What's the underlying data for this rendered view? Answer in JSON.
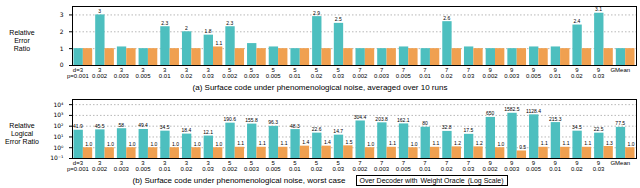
{
  "chart_data": [
    {
      "type": "bar",
      "title": "(a) Surface code under phenomenological noise, averaged over 10 runs",
      "ylabel": "Relative\nError\nRatio",
      "categories": [
        "d=3\np=0.001",
        "3\n0.002",
        "3\n0.003",
        "3\n0.005",
        "3\n0.01",
        "3\n0.02",
        "3\n0.03",
        "5\n0.002",
        "5\n0.003",
        "5\n0.005",
        "5\n0.01",
        "5\n0.02",
        "5\n0.03",
        "7\n0.002",
        "7\n0.003",
        "7\n0.005",
        "7\n0.01",
        "7\n0.02",
        "7\n0.03",
        "9\n0.002",
        "9\n0.003",
        "9\n0.005",
        "9\n0.01",
        "9\n0.02",
        "9\n0.03",
        "GMean"
      ],
      "series": [
        {
          "color": "#4dbfbf",
          "values": [
            1.0,
            3.0,
            1.1,
            1.0,
            2.3,
            2.0,
            1.8,
            2.3,
            1.3,
            1.1,
            1.0,
            2.9,
            2.5,
            1.0,
            1.0,
            1.1,
            1.0,
            2.6,
            1.1,
            1.0,
            1.0,
            1.1,
            1.1,
            2.4,
            3.1,
            1.0
          ],
          "value_labels": [
            null,
            "3",
            null,
            null,
            "2.3",
            "2",
            "1.8",
            "2.3",
            null,
            null,
            null,
            "2.9",
            "2.5",
            null,
            null,
            null,
            null,
            "2.6",
            null,
            null,
            null,
            null,
            null,
            "2.4",
            "3.1",
            null
          ]
        },
        {
          "color": "#f0a050",
          "values": [
            1.0,
            1.0,
            1.0,
            1.0,
            1.0,
            1.0,
            1.1,
            1.0,
            1.0,
            1.0,
            1.0,
            1.0,
            1.0,
            1.0,
            1.0,
            1.0,
            1.0,
            1.0,
            1.0,
            1.0,
            1.0,
            1.0,
            1.0,
            1.0,
            1.0,
            1.0
          ],
          "value_labels": [
            null,
            null,
            null,
            null,
            null,
            null,
            "1.1",
            null,
            null,
            null,
            null,
            null,
            null,
            null,
            null,
            null,
            null,
            null,
            null,
            null,
            null,
            null,
            null,
            null,
            null,
            null
          ]
        }
      ],
      "ylim": [
        0,
        3.5
      ],
      "yticks": [
        0,
        1,
        2,
        3
      ],
      "grid": true,
      "data_labels": true
    },
    {
      "type": "bar",
      "title": "(b) Surface code under phenomenological noise, worst case",
      "ylabel": "Relative Logical\nError Ratio",
      "annotations": [
        "Over Decoder with",
        "Weight Oracle",
        "(Log Scale)"
      ],
      "categories": [
        "d=3\np=0.001",
        "3\n0.002",
        "3\n0.003",
        "3\n0.005",
        "3\n0.01",
        "3\n0.02",
        "3\n0.03",
        "5\n0.002",
        "5\n0.003",
        "5\n0.005",
        "5\n0.01",
        "5\n0.02",
        "5\n0.03",
        "7\n0.002",
        "7\n0.003",
        "7\n0.005",
        "7\n0.01",
        "7\n0.02",
        "7\n0.03",
        "9\n0.002",
        "9\n0.003",
        "9\n0.005",
        "9\n0.01",
        "9\n0.02",
        "9\n0.03",
        "GMean"
      ],
      "series": [
        {
          "color": "#4dbfbf",
          "values": [
            41.9,
            45.5,
            58.0,
            49.4,
            34.5,
            18.4,
            12.1,
            190.6,
            155.8,
            96.3,
            48.3,
            22.6,
            14.7,
            304.4,
            203.8,
            162.1,
            80.0,
            32.8,
            17.5,
            650.0,
            1582.5,
            1128.4,
            215.3,
            34.5,
            22.5,
            77.5
          ],
          "value_labels": [
            "41.9",
            "45.5",
            "58",
            "49.4",
            "34.5",
            "18.4",
            "12.1",
            "190.6",
            "155.8",
            "96.3",
            "48.3",
            "22.6",
            "14.7",
            "304.4",
            "203.8",
            "162.1",
            "80",
            "32.8",
            "17.5",
            "650",
            "1582.5",
            "1128.4",
            "215.3",
            "34.5",
            "22.5",
            "77.5"
          ]
        },
        {
          "color": "#f0a050",
          "values": [
            1.0,
            1.0,
            1.0,
            1.0,
            1.0,
            1.0,
            1.0,
            1.1,
            1.1,
            1.1,
            1.4,
            1.4,
            1.5,
            1.0,
            1.1,
            1.0,
            1.1,
            1.2,
            1.2,
            1.0,
            0.5,
            1.1,
            1.1,
            1.1,
            1.3,
            1.0
          ],
          "value_labels": [
            "1.0",
            "1.0",
            "1.0",
            "1.0",
            "1.0",
            "1.0",
            "1.0",
            "1.1",
            "1.1",
            "1.1",
            "1.4",
            "1.4",
            "1.5",
            "1.0",
            "1.1",
            "1.0",
            "1.1",
            "1.2",
            "1.2",
            "1.0",
            "0.5",
            "1.1",
            "1.1",
            "1.1",
            "1.3",
            "1.0"
          ]
        }
      ],
      "log": "y",
      "ylim": [
        0.1,
        30000
      ],
      "yticks": [
        {
          "value": 0.1,
          "label": "10⁻¹"
        },
        {
          "value": 1,
          "label": "10⁰"
        },
        {
          "value": 10,
          "label": "10¹"
        },
        {
          "value": 100,
          "label": "10²"
        },
        {
          "value": 1000,
          "label": "10³"
        },
        {
          "value": 10000,
          "label": "10⁴"
        }
      ],
      "grid": true,
      "data_labels": true
    }
  ]
}
